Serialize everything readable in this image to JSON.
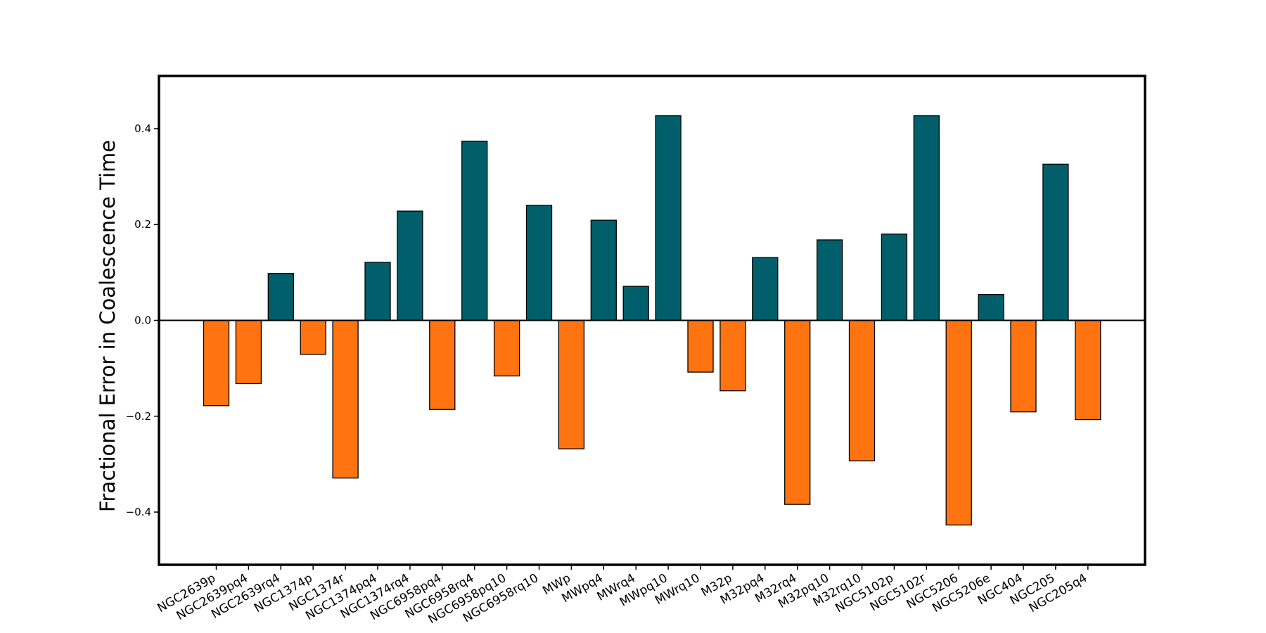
{
  "chart_data": {
    "type": "bar",
    "ylabel": "Fractional Error in Coalescence Time",
    "xlabel": "",
    "ylim": [
      -0.51,
      0.51
    ],
    "yticks": [
      -0.4,
      -0.2,
      0.0,
      0.2,
      0.4
    ],
    "ytick_labels": [
      "−0.4",
      "−0.2",
      "0.0",
      "0.2",
      "0.4"
    ],
    "grid": false,
    "zero_line": true,
    "colors": {
      "positive": "#005f6b",
      "negative": "#ff7410",
      "edge": "#000000"
    },
    "categories": [
      "NGC2639p",
      "NGC2639pq4",
      "NGC2639rq4",
      "NGC1374p",
      "NGC1374r",
      "NGC1374pq4",
      "NGC1374rq4",
      "NGC6958pq4",
      "NGC6958rq4",
      "NGC6958pq10",
      "NGC6958rq10",
      "MWp",
      "MWpq4",
      "MWrq4",
      "MWpq10",
      "MWrq10",
      "M32p",
      "M32pq4",
      "M32rq4",
      "M32pq10",
      "M32rq10",
      "NGC5102p",
      "NGC5102r",
      "NGC5206",
      "NGC5206e",
      "NGC404",
      "NGC205",
      "NGC205q4"
    ],
    "values": [
      -0.178,
      -0.132,
      0.098,
      -0.071,
      -0.329,
      0.121,
      0.228,
      -0.186,
      0.374,
      -0.116,
      0.24,
      -0.268,
      0.209,
      0.071,
      0.427,
      -0.108,
      -0.147,
      0.131,
      -0.384,
      0.168,
      -0.293,
      0.18,
      0.427,
      -0.427,
      0.054,
      -0.191,
      0.326,
      -0.207
    ]
  }
}
